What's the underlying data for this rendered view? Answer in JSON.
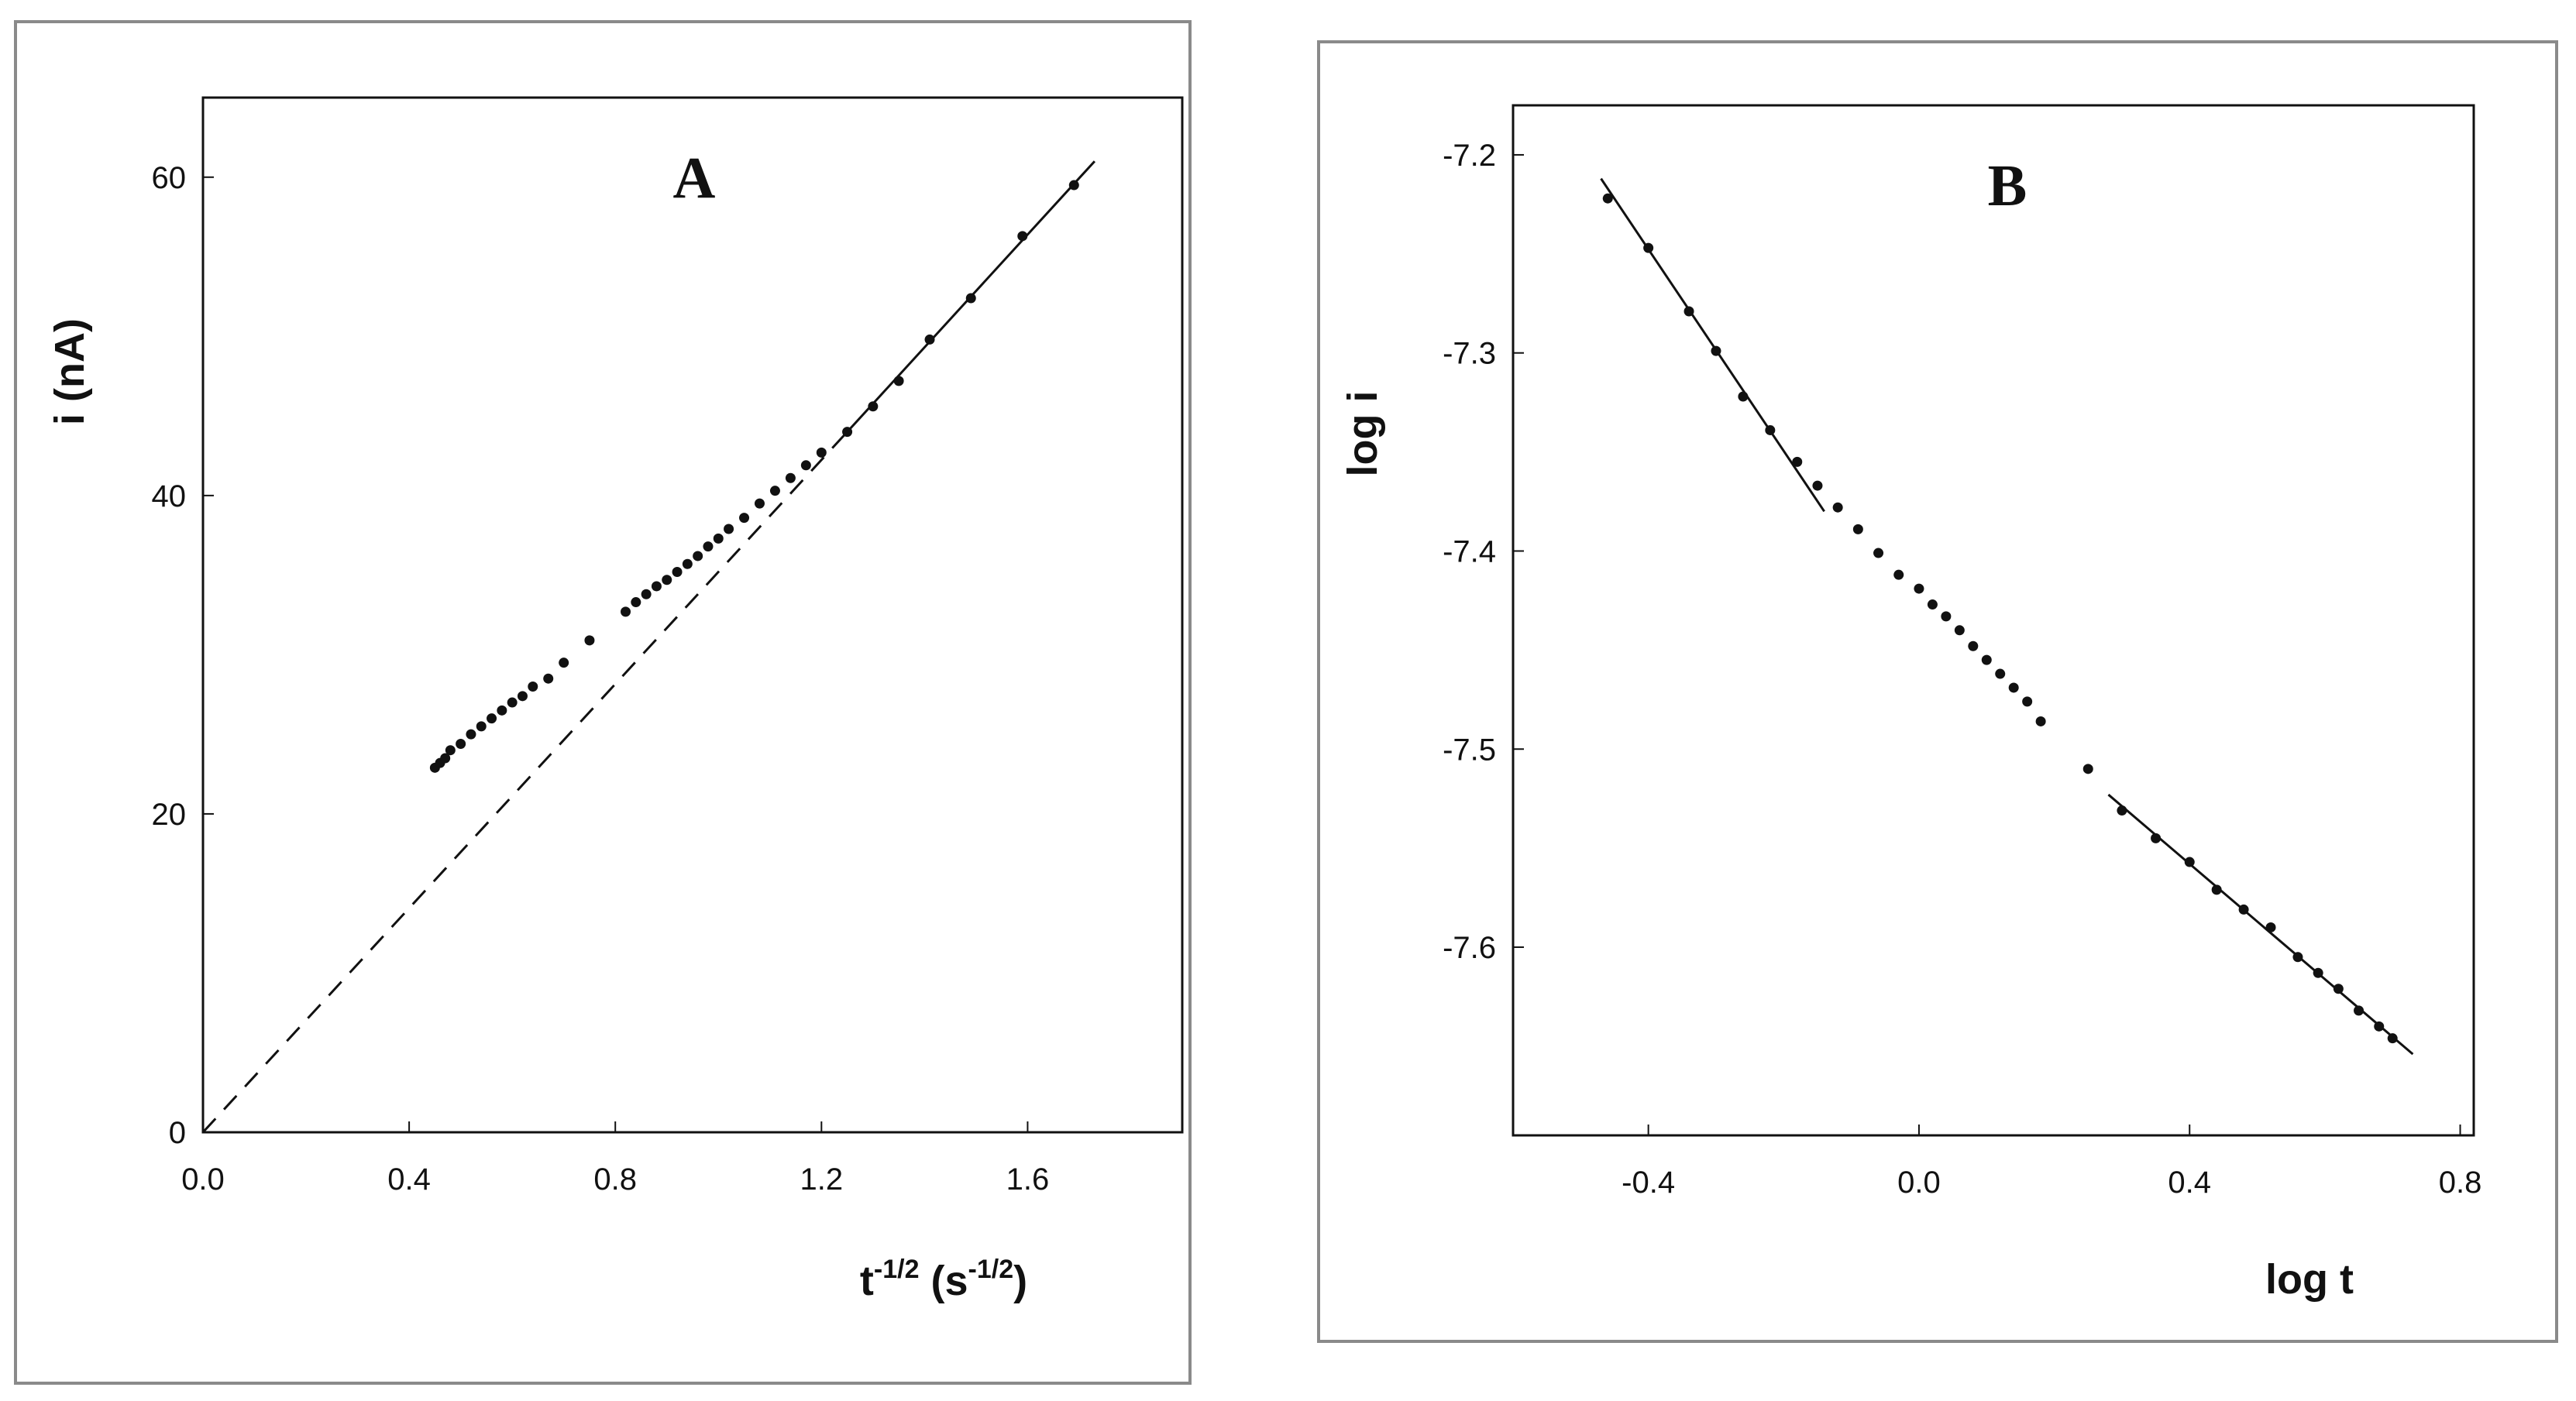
{
  "colors": {
    "ink": "#111111",
    "frame": "#8a8a8a",
    "background": "#ffffff"
  },
  "chart_data": [
    {
      "type": "scatter",
      "panel_label": "A",
      "xlabel_base": "t",
      "xlabel_sup": "-1/2",
      "xlabel_unit_open": " (s",
      "xlabel_unit_sup": "-1/2",
      "xlabel_unit_close": ")",
      "ylabel": "i (nA)",
      "xlim": [
        0.0,
        1.9
      ],
      "ylim": [
        0,
        65
      ],
      "x_ticks": [
        0.0,
        0.4,
        0.8,
        1.2,
        1.6
      ],
      "x_tick_labels": [
        "0.0",
        "0.4",
        "0.8",
        "1.2",
        "1.6"
      ],
      "y_ticks": [
        0,
        20,
        40,
        60
      ],
      "y_tick_labels": [
        "0",
        "20",
        "40",
        "60"
      ],
      "grid": false,
      "points": {
        "x": [
          0.45,
          0.46,
          0.47,
          0.48,
          0.5,
          0.52,
          0.54,
          0.56,
          0.58,
          0.6,
          0.62,
          0.64,
          0.67,
          0.7,
          0.75,
          0.82,
          0.84,
          0.86,
          0.88,
          0.9,
          0.92,
          0.94,
          0.96,
          0.98,
          1.0,
          1.02,
          1.05,
          1.08,
          1.11,
          1.14,
          1.17,
          1.2,
          1.25,
          1.3,
          1.35,
          1.41,
          1.49,
          1.59,
          1.69
        ],
        "y": [
          22.9,
          23.2,
          23.5,
          24.0,
          24.4,
          25.0,
          25.5,
          26.0,
          26.5,
          27.0,
          27.4,
          28.0,
          28.5,
          29.5,
          30.9,
          32.7,
          33.3,
          33.8,
          34.3,
          34.7,
          35.2,
          35.7,
          36.2,
          36.8,
          37.3,
          37.9,
          38.6,
          39.5,
          40.3,
          41.1,
          41.9,
          42.7,
          44.0,
          45.6,
          47.2,
          49.8,
          52.4,
          56.3,
          59.5
        ]
      },
      "fit_solid": {
        "x": [
          1.25,
          1.73
        ],
        "y": [
          44.0,
          61.0
        ]
      },
      "fit_dashed": {
        "x": [
          0.0,
          1.25
        ],
        "y": [
          0.0,
          44.0
        ]
      }
    },
    {
      "type": "scatter",
      "panel_label": "B",
      "xlabel": "log t",
      "ylabel": "log i",
      "xlim": [
        -0.6,
        0.82
      ],
      "ylim": [
        -7.695,
        -7.175
      ],
      "x_ticks": [
        -0.4,
        0.0,
        0.4,
        0.8
      ],
      "x_tick_labels": [
        "-0.4",
        "0.0",
        "0.4",
        "0.8"
      ],
      "y_ticks": [
        -7.2,
        -7.3,
        -7.4,
        -7.5,
        -7.6
      ],
      "y_tick_labels": [
        "-7.2",
        "-7.3",
        "-7.4",
        "-7.5",
        "-7.6"
      ],
      "grid": false,
      "points": {
        "x": [
          -0.46,
          -0.4,
          -0.34,
          -0.3,
          -0.26,
          -0.22,
          -0.18,
          -0.15,
          -0.12,
          -0.09,
          -0.06,
          -0.03,
          0.0,
          0.02,
          0.04,
          0.06,
          0.08,
          0.1,
          0.12,
          0.14,
          0.16,
          0.18,
          0.25,
          0.3,
          0.35,
          0.4,
          0.44,
          0.48,
          0.52,
          0.56,
          0.59,
          0.62,
          0.65,
          0.68,
          0.7
        ],
        "y": [
          -7.222,
          -7.247,
          -7.279,
          -7.299,
          -7.322,
          -7.339,
          -7.355,
          -7.367,
          -7.378,
          -7.389,
          -7.401,
          -7.412,
          -7.419,
          -7.427,
          -7.433,
          -7.44,
          -7.448,
          -7.455,
          -7.462,
          -7.469,
          -7.476,
          -7.486,
          -7.51,
          -7.531,
          -7.545,
          -7.557,
          -7.571,
          -7.581,
          -7.59,
          -7.605,
          -7.613,
          -7.621,
          -7.632,
          -7.64,
          -7.646
        ]
      },
      "fit_solid_1": {
        "x": [
          -0.47,
          -0.14
        ],
        "y": [
          -7.212,
          -7.38
        ]
      },
      "fit_solid_2": {
        "x": [
          0.28,
          0.73
        ],
        "y": [
          -7.523,
          -7.654
        ]
      }
    }
  ]
}
